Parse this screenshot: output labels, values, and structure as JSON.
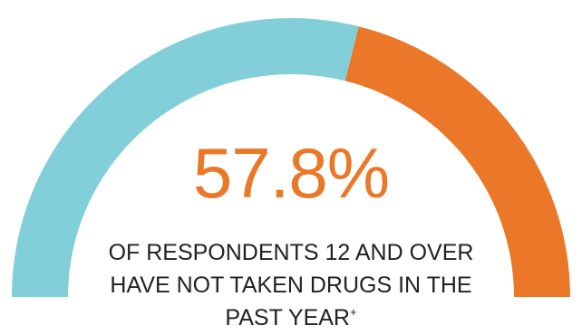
{
  "chart_data": {
    "type": "gauge",
    "value_label": "57.8%",
    "segments": [
      {
        "value": 57.8,
        "color": "#82cfda"
      },
      {
        "value": 42.2,
        "color": "#ea7828"
      }
    ],
    "caption_lines": [
      "OF RESPONDENTS 12 AND OVER",
      "HAVE NOT TAKEN DRUGS IN THE",
      "PAST YEAR"
    ],
    "caption_marker": "+"
  },
  "colors": {
    "accent": "#ea7828",
    "primary_segment": "#82cfda"
  }
}
